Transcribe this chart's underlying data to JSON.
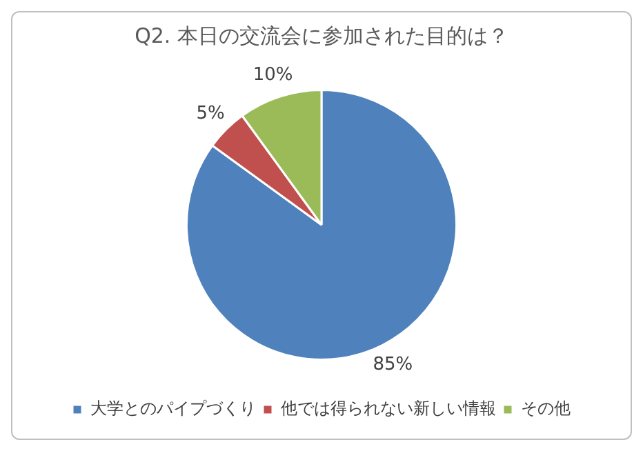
{
  "chart_data": {
    "type": "pie",
    "title": "Q2. 本日の交流会に参加された目的は？",
    "categories": [
      "大学とのパイプづくり",
      "他では得られない新しい情報",
      "その他"
    ],
    "values": [
      85,
      5,
      10
    ],
    "colors": [
      "#4f81bd",
      "#c0504d",
      "#9bbb59"
    ],
    "value_labels": [
      "85%",
      "5%",
      "10%"
    ],
    "legend": "bottom"
  }
}
